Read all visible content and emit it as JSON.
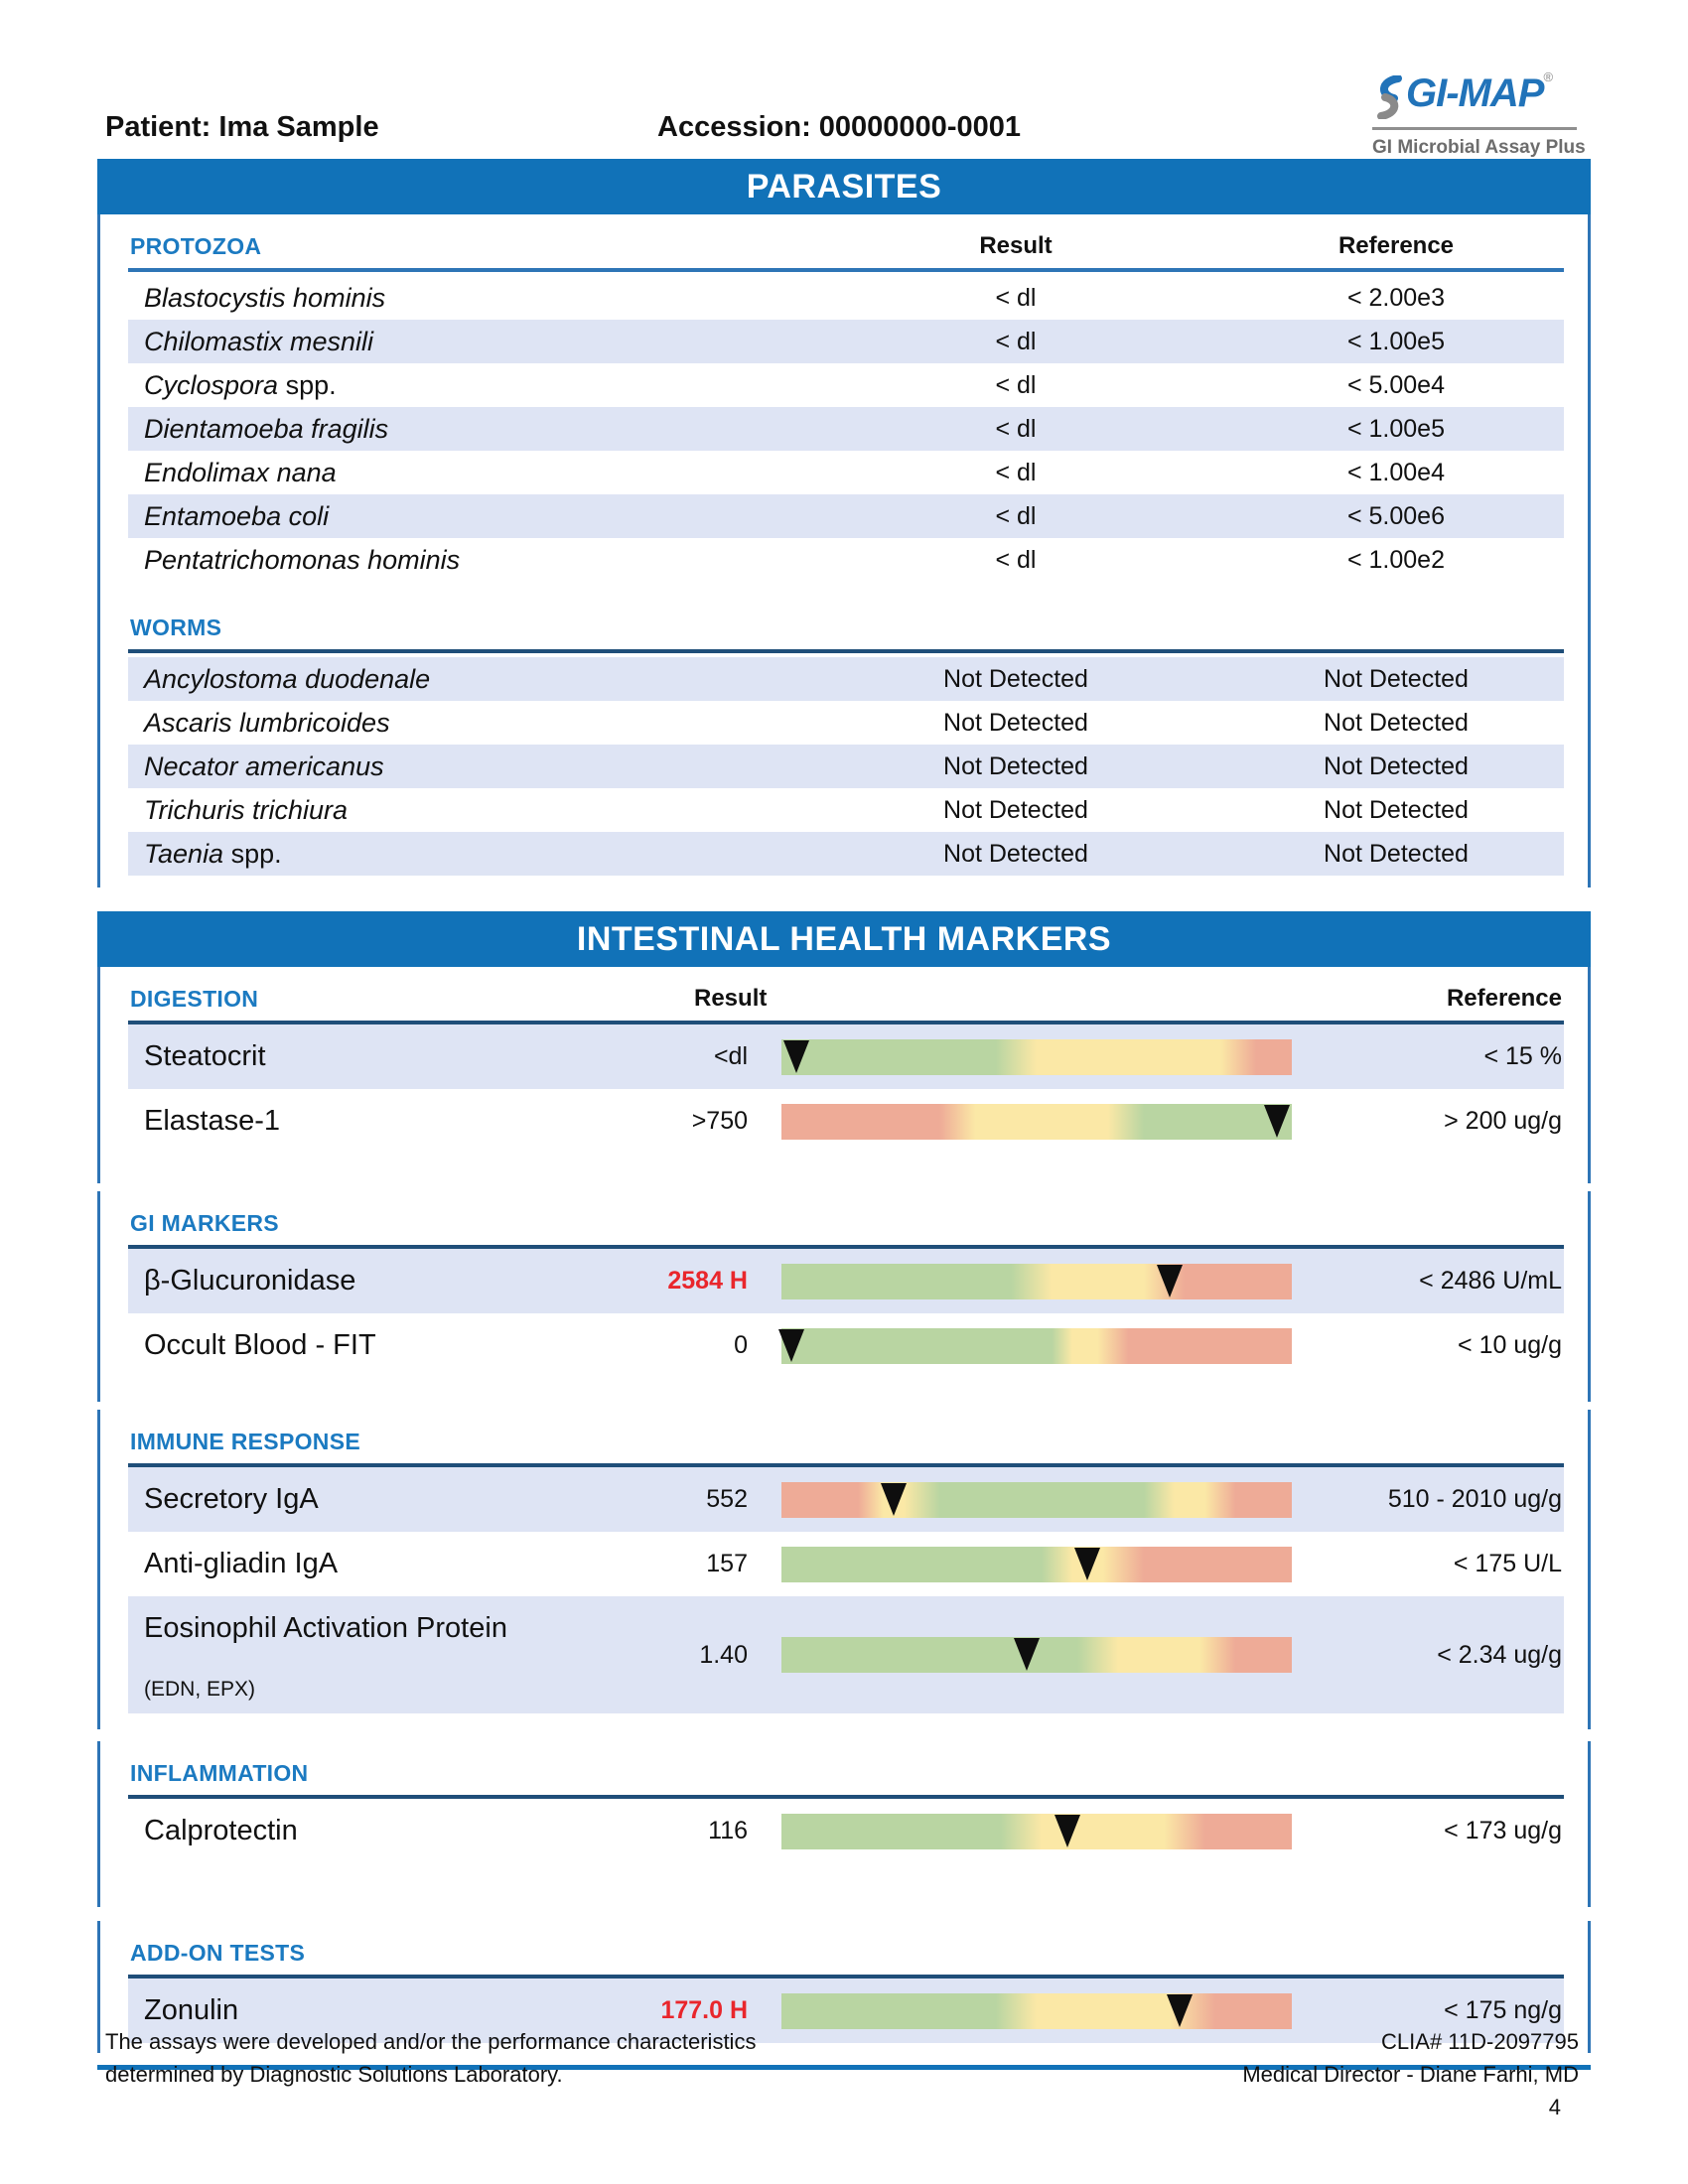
{
  "header": {
    "patient": "Patient: Ima Sample",
    "accession": "Accession: 00000000-0001",
    "logo": {
      "brand": "GI-MAP",
      "registered": "®",
      "tagline": "GI Microbial Assay Plus"
    }
  },
  "parasites": {
    "banner": "PARASITES",
    "columns": {
      "result": "Result",
      "reference": "Reference"
    },
    "groups": [
      {
        "label": "PROTOZOA",
        "underline_color": "#2e75b6",
        "show_headers": true,
        "rows": [
          {
            "name_italic": "Blastocystis hominis",
            "name_roman": "",
            "result": "< dl",
            "reference": "< 2.00e3"
          },
          {
            "name_italic": "Chilomastix mesnili",
            "name_roman": "",
            "result": "< dl",
            "reference": "< 1.00e5"
          },
          {
            "name_italic": "Cyclospora",
            "name_roman": " spp.",
            "result": "< dl",
            "reference": "< 5.00e4"
          },
          {
            "name_italic": "Dientamoeba fragilis",
            "name_roman": "",
            "result": "< dl",
            "reference": "< 1.00e5"
          },
          {
            "name_italic": "Endolimax nana",
            "name_roman": "",
            "result": "< dl",
            "reference": "< 1.00e4"
          },
          {
            "name_italic": "Entamoeba coli",
            "name_roman": "",
            "result": "< dl",
            "reference": "< 5.00e6"
          },
          {
            "name_italic": "Pentatrichomonas hominis",
            "name_roman": "",
            "result": "< dl",
            "reference": "< 1.00e2"
          }
        ]
      },
      {
        "label": "WORMS",
        "underline_color": "#1f4e79",
        "show_headers": false,
        "rows": [
          {
            "name_italic": "Ancylostoma duodenale",
            "name_roman": "",
            "result": "Not Detected",
            "reference": "Not Detected"
          },
          {
            "name_italic": "Ascaris lumbricoides",
            "name_roman": "",
            "result": "Not Detected",
            "reference": "Not Detected"
          },
          {
            "name_italic": "Necator americanus",
            "name_roman": "",
            "result": "Not Detected",
            "reference": "Not Detected"
          },
          {
            "name_italic": "Trichuris trichiura",
            "name_roman": "",
            "result": "Not Detected",
            "reference": "Not Detected"
          },
          {
            "name_italic": "Taenia",
            "name_roman": " spp.",
            "result": "Not Detected",
            "reference": "Not Detected"
          }
        ]
      }
    ]
  },
  "intestinal": {
    "banner": "INTESTINAL HEALTH MARKERS",
    "columns": {
      "result": "Result",
      "reference": "Reference"
    },
    "sections": [
      {
        "label": "DIGESTION",
        "show_headers": true,
        "rows": [
          {
            "name": "Steatocrit",
            "sub": "",
            "result": "<dl",
            "flagged": false,
            "reference": "< 15 %",
            "bar": {
              "segments": [
                {
                  "color": "green",
                  "from": 0,
                  "to": 42
                },
                {
                  "color": "yellow",
                  "from": 50,
                  "to": 86
                },
                {
                  "color": "red",
                  "from": 93,
                  "to": 100
                }
              ],
              "marker_pct": 3
            }
          },
          {
            "name": "Elastase-1",
            "sub": "",
            "result": ">750",
            "flagged": false,
            "reference": "> 200 ug/g",
            "bar": {
              "segments": [
                {
                  "color": "red",
                  "from": 0,
                  "to": 31
                },
                {
                  "color": "yellow",
                  "from": 38,
                  "to": 64
                },
                {
                  "color": "green",
                  "from": 71,
                  "to": 100
                }
              ],
              "marker_pct": 97
            }
          }
        ]
      },
      {
        "label": "GI MARKERS",
        "show_headers": false,
        "rows": [
          {
            "name": "β-Glucuronidase",
            "sub": "",
            "result": "2584 H",
            "flagged": true,
            "reference": "< 2486 U/mL",
            "bar": {
              "segments": [
                {
                  "color": "green",
                  "from": 0,
                  "to": 45
                },
                {
                  "color": "yellow",
                  "from": 53,
                  "to": 71
                },
                {
                  "color": "red",
                  "from": 79,
                  "to": 100
                }
              ],
              "marker_pct": 76
            }
          },
          {
            "name": "Occult Blood - FIT",
            "sub": "",
            "result": "0",
            "flagged": false,
            "reference": "< 10 ug/g",
            "bar": {
              "segments": [
                {
                  "color": "green",
                  "from": 0,
                  "to": 53
                },
                {
                  "color": "yellow",
                  "from": 57,
                  "to": 62
                },
                {
                  "color": "red",
                  "from": 68,
                  "to": 100
                }
              ],
              "marker_pct": 2
            }
          }
        ]
      },
      {
        "label": "IMMUNE RESPONSE",
        "show_headers": false,
        "rows": [
          {
            "name": "Secretory IgA",
            "sub": "",
            "result": "552",
            "flagged": false,
            "reference": "510 - 2010 ug/g",
            "bar": {
              "segments": [
                {
                  "color": "red",
                  "from": 0,
                  "to": 15
                },
                {
                  "color": "yellow",
                  "from": 20,
                  "to": 24
                },
                {
                  "color": "green",
                  "from": 31,
                  "to": 71
                },
                {
                  "color": "yellow",
                  "from": 77,
                  "to": 83
                },
                {
                  "color": "red",
                  "from": 89,
                  "to": 100
                }
              ],
              "marker_pct": 22
            }
          },
          {
            "name": "Anti-gliadin IgA",
            "sub": "",
            "result": "157",
            "flagged": false,
            "reference": "< 175 U/L",
            "bar": {
              "segments": [
                {
                  "color": "green",
                  "from": 0,
                  "to": 51
                },
                {
                  "color": "yellow",
                  "from": 57,
                  "to": 63
                },
                {
                  "color": "red",
                  "from": 71,
                  "to": 100
                }
              ],
              "marker_pct": 60
            }
          },
          {
            "name": "Eosinophil Activation Protein",
            "sub": "(EDN, EPX)",
            "result": "1.40",
            "flagged": false,
            "reference": "< 2.34 ug/g",
            "bar": {
              "segments": [
                {
                  "color": "green",
                  "from": 0,
                  "to": 58
                },
                {
                  "color": "yellow",
                  "from": 66,
                  "to": 82
                },
                {
                  "color": "red",
                  "from": 89,
                  "to": 100
                }
              ],
              "marker_pct": 48
            }
          }
        ]
      },
      {
        "label": "INFLAMMATION",
        "show_headers": false,
        "rows": [
          {
            "name": "Calprotectin",
            "sub": "",
            "result": "116",
            "flagged": false,
            "reference": "< 173 ug/g",
            "bar": {
              "segments": [
                {
                  "color": "green",
                  "from": 0,
                  "to": 43
                },
                {
                  "color": "yellow",
                  "from": 51,
                  "to": 75
                },
                {
                  "color": "red",
                  "from": 83,
                  "to": 100
                }
              ],
              "marker_pct": 56
            }
          }
        ]
      },
      {
        "label": "ADD-ON TESTS",
        "show_headers": false,
        "rows": [
          {
            "name": "Zonulin",
            "sub": "",
            "result": "177.0 H",
            "flagged": true,
            "reference": "< 175 ng/g",
            "bar": {
              "segments": [
                {
                  "color": "green",
                  "from": 0,
                  "to": 42
                },
                {
                  "color": "yellow",
                  "from": 50,
                  "to": 76
                },
                {
                  "color": "red",
                  "from": 85,
                  "to": 100
                }
              ],
              "marker_pct": 78
            }
          }
        ]
      }
    ]
  },
  "footer": {
    "left_line1": "The assays were developed and/or the performance characteristics",
    "left_line2": "determined by Diagnostic Solutions Laboratory.",
    "right_line1": "CLIA# 11D-2097795",
    "right_line2": "Medical Director - Diane Farhi, MD",
    "page": "4"
  },
  "colors": {
    "banner_blue": "#1172b8",
    "border_blue": "#2e75b6",
    "label_blue": "#1b7ac1",
    "underline_navy": "#1f4e79",
    "stripe": "#dee4f4",
    "bar_green": "#b9d5a2",
    "bar_yellow": "#fbe8a6",
    "bar_red": "#eeab97",
    "flag_red": "#e9262c",
    "logo_blue": "#2173b9",
    "logo_gray": "#6d6d6d"
  }
}
